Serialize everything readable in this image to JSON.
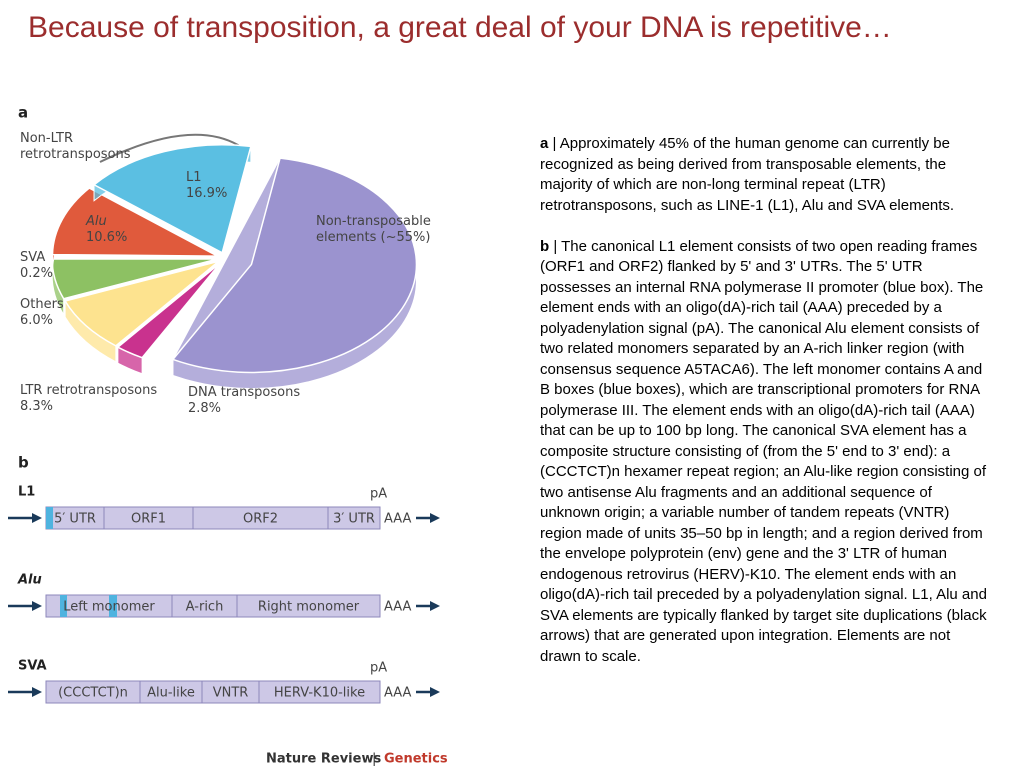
{
  "header": {
    "title": "Because of transposition, a great deal of your DNA is repetitive…"
  },
  "figure": {
    "panel_a": "a",
    "pie": {
      "group_label": "Non-LTR retrotransposons",
      "slices": [
        {
          "name": "Non-transposable elements (~55%)",
          "value": 55,
          "color": "#9b93cf"
        },
        {
          "name": "DNA transposons",
          "value": 2.8,
          "value_label": "2.8%",
          "color": "#c9328e"
        },
        {
          "name": "LTR retrotransposons",
          "value": 8.3,
          "value_label": "8.3%",
          "color": "#fde38f"
        },
        {
          "name": "Others",
          "value": 6.0,
          "value_label": "6.0%",
          "color": "#8dc163"
        },
        {
          "name": "SVA",
          "value": 0.2,
          "value_label": "0.2%",
          "color": "#7a1a1a"
        },
        {
          "name": "Alu",
          "value": 10.6,
          "value_label": "10.6%",
          "color": "#e05a3c"
        },
        {
          "name": "L1",
          "value": 16.9,
          "value_label": "16.9%",
          "color": "#5bbfe2"
        }
      ]
    },
    "panel_b": "b",
    "elements": [
      {
        "name": "L1",
        "segments": [
          "5′ UTR",
          "ORF1",
          "ORF2",
          "3′ UTR"
        ],
        "signal": "pA",
        "tail": "AAA"
      },
      {
        "name": "Alu",
        "segments": [
          "Left monomer",
          "A-rich",
          "Right monomer"
        ],
        "tail": "AAA"
      },
      {
        "name": "SVA",
        "segments": [
          "(CCCTCT)n",
          "Alu-like",
          "VNTR",
          "HERV-K10-like"
        ],
        "signal": "pA",
        "tail": "AAA"
      }
    ],
    "footer": {
      "journal": "Nature Reviews",
      "separator": "|",
      "section": "Genetics"
    }
  },
  "caption": [
    {
      "marker": "a",
      "text": " | Approximately 45% of the human genome can currently be recognized as being derived from transposable elements, the majority of which are non-long terminal repeat (LTR) retrotransposons, such as LINE-1 (L1), Alu and SVA elements."
    },
    {
      "marker": "b",
      "text": " | The canonical L1 element consists of two open reading frames (ORF1 and ORF2) flanked by 5' and 3' UTRs. The 5' UTR possesses an internal RNA polymerase II promoter (blue box). The element ends with an oligo(dA)-rich tail (AAA) preceded by a polyadenylation signal (pA). The canonical Alu element consists of two related monomers separated by an A-rich linker region (with consensus sequence A5TACA6). The left monomer contains A and B boxes (blue boxes), which are transcriptional promoters for RNA polymerase III. The element ends with an oligo(dA)-rich tail (AAA) that can be up to 100 bp long. The canonical SVA element has a composite structure consisting of (from the 5' end to 3' end): a (CCCTCT)n hexamer repeat region; an Alu-like region consisting of two antisense Alu fragments and an additional sequence of unknown origin; a variable number of tandem repeats (VNTR) region made of units 35–50 bp in length; and a region derived from the envelope polyprotein (env) gene and the 3' LTR of human endogenous retrovirus (HERV)-K10. The element ends with an oligo(dA)-rich tail preceded by a polyadenylation signal. L1, Alu and SVA elements are typically flanked by target site duplications (black arrows) that are generated upon integration. Elements are not drawn to scale."
    }
  ]
}
